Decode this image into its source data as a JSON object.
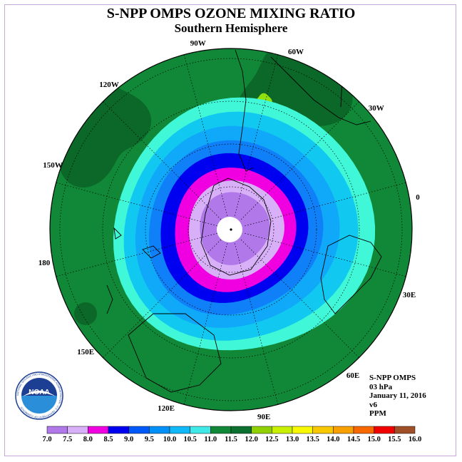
{
  "title": "S-NPP OMPS OZONE MIXING RATIO",
  "subtitle": "Southern Hemisphere",
  "logo": {
    "text": "NOAA",
    "ring_text": "NATIONAL OCEANIC AND ATMOSPHERIC ADMINISTRATION · U.S. DEPARTMENT OF COMMERCE",
    "color_top": "#1c3f94",
    "color_bottom": "#2a8fd8"
  },
  "info": {
    "instrument": "S-NPP OMPS",
    "level": "03 hPa",
    "date": "January 11, 2016",
    "version": "v6",
    "units": "PPM"
  },
  "longitude_labels": [
    {
      "text": "90W"
    },
    {
      "text": "60W"
    },
    {
      "text": "30W"
    },
    {
      "text": "0"
    },
    {
      "text": "30E"
    },
    {
      "text": "60E"
    },
    {
      "text": "90E"
    },
    {
      "text": "120E"
    },
    {
      "text": "150E"
    },
    {
      "text": "180"
    },
    {
      "text": "150W"
    },
    {
      "text": "120W"
    }
  ],
  "colorbar": {
    "ticks": [
      "7.0",
      "7.5",
      "8.0",
      "8.5",
      "9.0",
      "9.5",
      "10.0",
      "10.5",
      "11.0",
      "11.5",
      "12.0",
      "12.5",
      "13.0",
      "13.5",
      "14.0",
      "14.5",
      "15.0",
      "15.5",
      "16.0"
    ],
    "colors": [
      "#b078e8",
      "#d8b0f8",
      "#f000e0",
      "#0000f0",
      "#0058f8",
      "#0090f8",
      "#10b8f8",
      "#40e8e8",
      "#108838",
      "#0c7030",
      "#90d000",
      "#c8f000",
      "#f8f800",
      "#f8c800",
      "#f8a000",
      "#f86800",
      "#f00000",
      "#a05028"
    ]
  },
  "field": {
    "levels_ppm": [
      {
        "value": 11.5,
        "color": "#108838"
      },
      {
        "value": 11.0,
        "color": "#40f8d8"
      },
      {
        "value": 10.5,
        "color": "#10c8f0"
      },
      {
        "value": 10.0,
        "color": "#10a8f8"
      },
      {
        "value": 9.5,
        "color": "#1080f8"
      },
      {
        "value": 9.0,
        "color": "#0000f0"
      },
      {
        "value": 8.5,
        "color": "#f000e0"
      },
      {
        "value": 8.0,
        "color": "#d8b0f8"
      },
      {
        "value": 7.5,
        "color": "#b078e8"
      }
    ],
    "highs_ppm": [
      {
        "value": 12.0,
        "color": "#0c6828"
      },
      {
        "value": 12.5,
        "color": "#90e010"
      }
    ],
    "missing_color": "#ffffff"
  }
}
